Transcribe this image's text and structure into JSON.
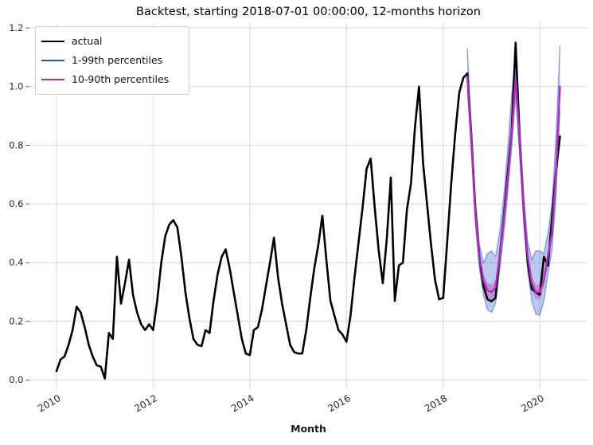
{
  "chart_data": {
    "type": "line",
    "title": "Backtest, starting 2018-07-01 00:00:00, 12-months horizon",
    "xlabel": "Month",
    "ylabel": "",
    "x_start": "2010-01",
    "x_frequency": "monthly",
    "ylim": [
      0.0,
      1.2
    ],
    "grid": true,
    "legend_position": "upper left",
    "x_ticks": {
      "labels": [
        "2010",
        "2012",
        "2014",
        "2016",
        "2018",
        "2020"
      ],
      "month_indices": [
        0,
        24,
        48,
        72,
        96,
        120
      ]
    },
    "y_ticks": {
      "labels": [
        "0.0",
        "0.2",
        "0.4",
        "0.6",
        "0.8",
        "1.0",
        "1.2"
      ],
      "values": [
        0,
        0.2,
        0.4,
        0.6,
        0.8,
        1.0,
        1.2
      ]
    },
    "legend": [
      {
        "label": "actual",
        "color": "#000000"
      },
      {
        "label": "1-99th percentiles",
        "color": "#2050d0"
      },
      {
        "label": "10-90th percentiles",
        "color": "#b42cb4"
      }
    ],
    "series": [
      {
        "name": "actual",
        "type": "line",
        "color": "#000000",
        "start_month_index": 0,
        "values": [
          0.03,
          0.07,
          0.08,
          0.12,
          0.17,
          0.25,
          0.23,
          0.18,
          0.12,
          0.08,
          0.05,
          0.045,
          0.005,
          0.16,
          0.14,
          0.42,
          0.26,
          0.33,
          0.41,
          0.29,
          0.23,
          0.19,
          0.17,
          0.19,
          0.17,
          0.27,
          0.4,
          0.49,
          0.53,
          0.545,
          0.52,
          0.42,
          0.3,
          0.21,
          0.14,
          0.12,
          0.115,
          0.17,
          0.16,
          0.27,
          0.36,
          0.42,
          0.445,
          0.38,
          0.3,
          0.22,
          0.14,
          0.09,
          0.085,
          0.17,
          0.18,
          0.24,
          0.32,
          0.4,
          0.485,
          0.35,
          0.26,
          0.19,
          0.12,
          0.095,
          0.09,
          0.09,
          0.17,
          0.28,
          0.38,
          0.46,
          0.56,
          0.41,
          0.27,
          0.22,
          0.17,
          0.155,
          0.13,
          0.22,
          0.35,
          0.47,
          0.59,
          0.72,
          0.755,
          0.59,
          0.44,
          0.33,
          0.48,
          0.69,
          0.27,
          0.39,
          0.4,
          0.58,
          0.67,
          0.86,
          1.0,
          0.74,
          0.6,
          0.46,
          0.34,
          0.275,
          0.28,
          0.47,
          0.67,
          0.84,
          0.98,
          1.03,
          1.045,
          0.83,
          0.58,
          0.42,
          0.32,
          0.275,
          0.268,
          0.28,
          0.42,
          0.55,
          0.7,
          0.85,
          1.15,
          0.82,
          0.58,
          0.4,
          0.31,
          0.3,
          0.29,
          0.42,
          0.39,
          0.55,
          0.71,
          0.83
        ]
      },
      {
        "name": "forecast median",
        "type": "line",
        "color": "#b42cb4",
        "start_month_index": 102,
        "values": [
          1.035,
          0.82,
          0.57,
          0.42,
          0.34,
          0.305,
          0.3,
          0.315,
          0.42,
          0.54,
          0.68,
          0.84,
          1.03,
          0.82,
          0.58,
          0.42,
          0.33,
          0.3,
          0.3,
          0.34,
          0.42,
          0.5,
          0.7,
          1.0
        ]
      },
      {
        "name": "1-99th percentiles band",
        "type": "band",
        "color": "#2050d0",
        "fill_opacity": 0.3,
        "edge_opacity": 0.5,
        "start_month_index": 102,
        "upper": [
          1.13,
          0.86,
          0.62,
          0.46,
          0.4,
          0.43,
          0.44,
          0.42,
          0.5,
          0.62,
          0.78,
          0.97,
          1.11,
          0.88,
          0.63,
          0.47,
          0.41,
          0.44,
          0.44,
          0.43,
          0.5,
          0.6,
          0.82,
          1.14
        ],
        "lower": [
          0.99,
          0.77,
          0.53,
          0.38,
          0.29,
          0.24,
          0.23,
          0.26,
          0.37,
          0.49,
          0.63,
          0.79,
          0.97,
          0.76,
          0.53,
          0.37,
          0.27,
          0.225,
          0.22,
          0.27,
          0.36,
          0.44,
          0.62,
          0.92
        ]
      },
      {
        "name": "10-90th percentiles band",
        "type": "band",
        "color": "#b42cb4",
        "fill_opacity": 0.35,
        "edge_opacity": 0,
        "start_month_index": 102,
        "upper": [
          1.06,
          0.845,
          0.595,
          0.44,
          0.36,
          0.33,
          0.325,
          0.34,
          0.445,
          0.565,
          0.705,
          0.865,
          1.05,
          0.845,
          0.605,
          0.445,
          0.355,
          0.325,
          0.325,
          0.365,
          0.445,
          0.525,
          0.73,
          1.03
        ],
        "lower": [
          1.005,
          0.795,
          0.545,
          0.4,
          0.32,
          0.28,
          0.275,
          0.29,
          0.395,
          0.515,
          0.655,
          0.815,
          1.005,
          0.795,
          0.555,
          0.395,
          0.305,
          0.275,
          0.275,
          0.315,
          0.395,
          0.475,
          0.67,
          0.965
        ]
      }
    ]
  }
}
